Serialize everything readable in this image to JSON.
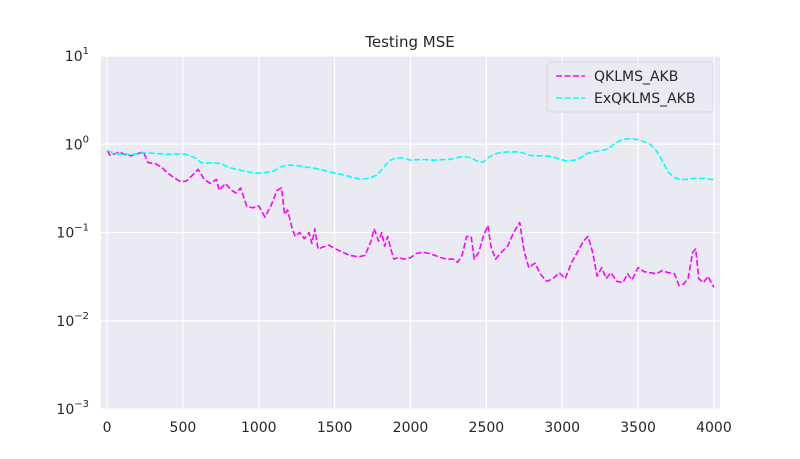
{
  "chart_data": {
    "type": "line",
    "title": "Testing MSE",
    "xlabel": "",
    "ylabel": "",
    "xlim": [
      -40,
      4040
    ],
    "ylim": [
      0.001,
      10
    ],
    "yscale": "log",
    "grid": true,
    "legend_position": "top-right",
    "x_ticks": [
      0,
      500,
      1000,
      1500,
      2000,
      2500,
      3000,
      3500,
      4000
    ],
    "x_tick_labels": [
      "0",
      "500",
      "1000",
      "1500",
      "2000",
      "2500",
      "3000",
      "3500",
      "4000"
    ],
    "y_ticks": [
      {
        "value": 10,
        "base": "10",
        "exp": "1"
      },
      {
        "value": 1,
        "base": "10",
        "exp": "0"
      },
      {
        "value": 0.1,
        "base": "10",
        "exp": "−1"
      },
      {
        "value": 0.01,
        "base": "10",
        "exp": "−2"
      },
      {
        "value": 0.001,
        "base": "10",
        "exp": "−3"
      }
    ],
    "series": [
      {
        "name": "QKLMS_AKB",
        "color": "#ff00ff",
        "style": "dashed",
        "points": [
          [
            0,
            0.85
          ],
          [
            20,
            0.75
          ],
          [
            50,
            0.78
          ],
          [
            80,
            0.82
          ],
          [
            120,
            0.76
          ],
          [
            160,
            0.74
          ],
          [
            200,
            0.78
          ],
          [
            240,
            0.82
          ],
          [
            270,
            0.62
          ],
          [
            320,
            0.6
          ],
          [
            360,
            0.55
          ],
          [
            400,
            0.47
          ],
          [
            440,
            0.42
          ],
          [
            480,
            0.38
          ],
          [
            520,
            0.38
          ],
          [
            560,
            0.44
          ],
          [
            600,
            0.52
          ],
          [
            640,
            0.4
          ],
          [
            680,
            0.36
          ],
          [
            720,
            0.4
          ],
          [
            740,
            0.3
          ],
          [
            780,
            0.36
          ],
          [
            820,
            0.3
          ],
          [
            850,
            0.28
          ],
          [
            880,
            0.32
          ],
          [
            920,
            0.2
          ],
          [
            960,
            0.19
          ],
          [
            1000,
            0.2
          ],
          [
            1040,
            0.15
          ],
          [
            1080,
            0.2
          ],
          [
            1120,
            0.3
          ],
          [
            1150,
            0.32
          ],
          [
            1170,
            0.16
          ],
          [
            1190,
            0.18
          ],
          [
            1220,
            0.11
          ],
          [
            1240,
            0.09
          ],
          [
            1270,
            0.1
          ],
          [
            1300,
            0.085
          ],
          [
            1330,
            0.1
          ],
          [
            1350,
            0.075
          ],
          [
            1370,
            0.11
          ],
          [
            1390,
            0.065
          ],
          [
            1420,
            0.068
          ],
          [
            1460,
            0.072
          ],
          [
            1500,
            0.066
          ],
          [
            1550,
            0.06
          ],
          [
            1600,
            0.055
          ],
          [
            1660,
            0.053
          ],
          [
            1700,
            0.055
          ],
          [
            1740,
            0.08
          ],
          [
            1760,
            0.11
          ],
          [
            1790,
            0.08
          ],
          [
            1810,
            0.1
          ],
          [
            1830,
            0.07
          ],
          [
            1850,
            0.09
          ],
          [
            1870,
            0.065
          ],
          [
            1890,
            0.05
          ],
          [
            1920,
            0.052
          ],
          [
            1960,
            0.05
          ],
          [
            2000,
            0.052
          ],
          [
            2040,
            0.058
          ],
          [
            2080,
            0.06
          ],
          [
            2120,
            0.058
          ],
          [
            2160,
            0.055
          ],
          [
            2200,
            0.052
          ],
          [
            2240,
            0.05
          ],
          [
            2280,
            0.05
          ],
          [
            2310,
            0.046
          ],
          [
            2340,
            0.055
          ],
          [
            2370,
            0.09
          ],
          [
            2400,
            0.09
          ],
          [
            2420,
            0.05
          ],
          [
            2450,
            0.06
          ],
          [
            2480,
            0.09
          ],
          [
            2510,
            0.12
          ],
          [
            2530,
            0.07
          ],
          [
            2560,
            0.05
          ],
          [
            2600,
            0.06
          ],
          [
            2640,
            0.07
          ],
          [
            2680,
            0.1
          ],
          [
            2720,
            0.13
          ],
          [
            2750,
            0.06
          ],
          [
            2780,
            0.04
          ],
          [
            2820,
            0.045
          ],
          [
            2860,
            0.033
          ],
          [
            2900,
            0.028
          ],
          [
            2940,
            0.03
          ],
          [
            2980,
            0.035
          ],
          [
            3020,
            0.03
          ],
          [
            3060,
            0.045
          ],
          [
            3100,
            0.06
          ],
          [
            3140,
            0.08
          ],
          [
            3170,
            0.09
          ],
          [
            3200,
            0.06
          ],
          [
            3230,
            0.032
          ],
          [
            3260,
            0.04
          ],
          [
            3290,
            0.03
          ],
          [
            3320,
            0.035
          ],
          [
            3360,
            0.028
          ],
          [
            3400,
            0.027
          ],
          [
            3430,
            0.034
          ],
          [
            3460,
            0.029
          ],
          [
            3500,
            0.04
          ],
          [
            3540,
            0.036
          ],
          [
            3580,
            0.035
          ],
          [
            3620,
            0.034
          ],
          [
            3660,
            0.037
          ],
          [
            3700,
            0.035
          ],
          [
            3740,
            0.034
          ],
          [
            3770,
            0.025
          ],
          [
            3800,
            0.026
          ],
          [
            3830,
            0.03
          ],
          [
            3860,
            0.06
          ],
          [
            3880,
            0.065
          ],
          [
            3900,
            0.03
          ],
          [
            3930,
            0.027
          ],
          [
            3960,
            0.032
          ],
          [
            4000,
            0.024
          ]
        ]
      },
      {
        "name": "ExQKLMS_AKB",
        "color": "#00ffff",
        "style": "dashed",
        "points": [
          [
            0,
            0.85
          ],
          [
            40,
            0.8
          ],
          [
            80,
            0.77
          ],
          [
            120,
            0.78
          ],
          [
            160,
            0.76
          ],
          [
            200,
            0.78
          ],
          [
            240,
            0.8
          ],
          [
            300,
            0.79
          ],
          [
            360,
            0.78
          ],
          [
            400,
            0.77
          ],
          [
            450,
            0.78
          ],
          [
            500,
            0.78
          ],
          [
            540,
            0.75
          ],
          [
            580,
            0.7
          ],
          [
            620,
            0.62
          ],
          [
            660,
            0.61
          ],
          [
            700,
            0.62
          ],
          [
            750,
            0.6
          ],
          [
            800,
            0.55
          ],
          [
            850,
            0.52
          ],
          [
            900,
            0.5
          ],
          [
            950,
            0.48
          ],
          [
            1000,
            0.47
          ],
          [
            1050,
            0.48
          ],
          [
            1100,
            0.5
          ],
          [
            1150,
            0.56
          ],
          [
            1200,
            0.58
          ],
          [
            1260,
            0.57
          ],
          [
            1320,
            0.55
          ],
          [
            1380,
            0.53
          ],
          [
            1440,
            0.5
          ],
          [
            1500,
            0.47
          ],
          [
            1560,
            0.45
          ],
          [
            1620,
            0.42
          ],
          [
            1680,
            0.4
          ],
          [
            1740,
            0.42
          ],
          [
            1780,
            0.45
          ],
          [
            1820,
            0.54
          ],
          [
            1860,
            0.65
          ],
          [
            1900,
            0.7
          ],
          [
            1950,
            0.7
          ],
          [
            2000,
            0.66
          ],
          [
            2050,
            0.67
          ],
          [
            2100,
            0.67
          ],
          [
            2150,
            0.66
          ],
          [
            2200,
            0.67
          ],
          [
            2250,
            0.67
          ],
          [
            2300,
            0.7
          ],
          [
            2350,
            0.73
          ],
          [
            2400,
            0.7
          ],
          [
            2450,
            0.63
          ],
          [
            2480,
            0.63
          ],
          [
            2520,
            0.72
          ],
          [
            2560,
            0.78
          ],
          [
            2600,
            0.81
          ],
          [
            2650,
            0.82
          ],
          [
            2700,
            0.82
          ],
          [
            2740,
            0.8
          ],
          [
            2780,
            0.75
          ],
          [
            2820,
            0.74
          ],
          [
            2880,
            0.74
          ],
          [
            2940,
            0.72
          ],
          [
            2980,
            0.68
          ],
          [
            3020,
            0.65
          ],
          [
            3080,
            0.66
          ],
          [
            3120,
            0.7
          ],
          [
            3160,
            0.78
          ],
          [
            3200,
            0.82
          ],
          [
            3260,
            0.85
          ],
          [
            3300,
            0.88
          ],
          [
            3340,
            1.0
          ],
          [
            3380,
            1.1
          ],
          [
            3420,
            1.15
          ],
          [
            3460,
            1.16
          ],
          [
            3500,
            1.12
          ],
          [
            3540,
            1.07
          ],
          [
            3580,
            1.0
          ],
          [
            3620,
            0.85
          ],
          [
            3660,
            0.65
          ],
          [
            3700,
            0.48
          ],
          [
            3740,
            0.42
          ],
          [
            3780,
            0.4
          ],
          [
            3820,
            0.4
          ],
          [
            3860,
            0.41
          ],
          [
            3900,
            0.41
          ],
          [
            3940,
            0.41
          ],
          [
            3980,
            0.4
          ],
          [
            4000,
            0.4
          ]
        ]
      }
    ]
  }
}
